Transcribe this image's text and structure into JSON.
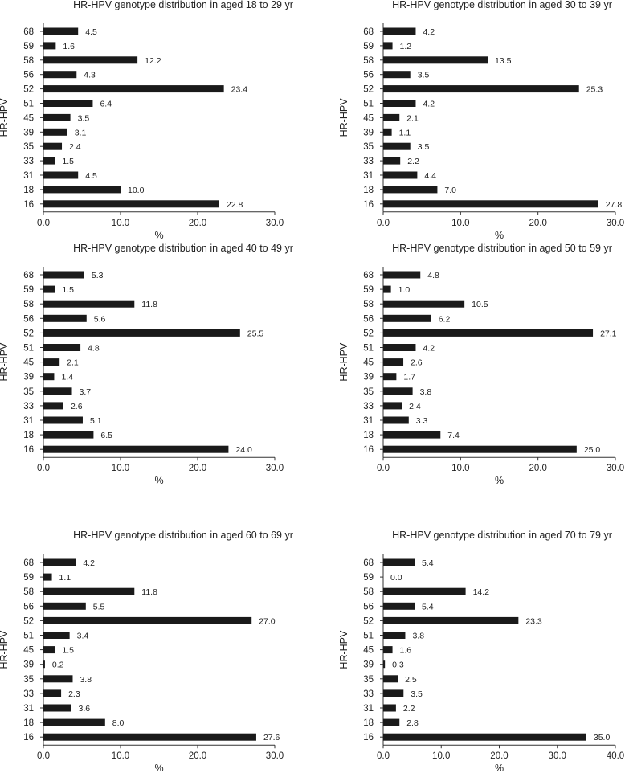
{
  "chart_data": [
    {
      "type": "bar",
      "orientation": "horizontal",
      "title": "HR-HPV genotype distribution in aged 18 to 29 yr",
      "ylabel": "HR-HPV",
      "xlabel": "%",
      "categories": [
        "68",
        "59",
        "58",
        "56",
        "52",
        "51",
        "45",
        "39",
        "35",
        "33",
        "31",
        "18",
        "16"
      ],
      "values": [
        4.5,
        1.6,
        12.2,
        4.3,
        23.4,
        6.4,
        3.5,
        3.1,
        2.4,
        1.5,
        4.5,
        10.0,
        22.8
      ],
      "labels": [
        "4.5",
        "1.6",
        "12.2",
        "4.3",
        "23.4",
        "6.4",
        "3.5",
        "3.1",
        "2.4",
        "1.5",
        "4.5",
        "10.0",
        "22.8"
      ],
      "xlim": [
        0,
        30
      ],
      "xticks": [
        "0.0",
        "10.0",
        "20.0",
        "30.0"
      ],
      "grid": false,
      "bar_color": "#1a1a1a"
    },
    {
      "type": "bar",
      "orientation": "horizontal",
      "title": "HR-HPV genotype distribution in aged 30 to 39 yr",
      "ylabel": "HR-HPV",
      "xlabel": "%",
      "categories": [
        "68",
        "59",
        "58",
        "56",
        "52",
        "51",
        "45",
        "39",
        "35",
        "33",
        "31",
        "18",
        "16"
      ],
      "values": [
        4.2,
        1.2,
        13.5,
        3.5,
        25.3,
        4.2,
        2.1,
        1.1,
        3.5,
        2.2,
        4.4,
        7.0,
        27.8
      ],
      "labels": [
        "4.2",
        "1.2",
        "13.5",
        "3.5",
        "25.3",
        "4.2",
        "2.1",
        "1.1",
        "3.5",
        "2.2",
        "4.4",
        "7.0",
        "27.8"
      ],
      "xlim": [
        0,
        30
      ],
      "xticks": [
        "0.0",
        "10.0",
        "20.0",
        "30.0"
      ],
      "grid": false,
      "bar_color": "#1a1a1a"
    },
    {
      "type": "bar",
      "orientation": "horizontal",
      "title": "HR-HPV genotype distribution in aged 40 to 49 yr",
      "ylabel": "HR-HPV",
      "xlabel": "%",
      "categories": [
        "68",
        "59",
        "58",
        "56",
        "52",
        "51",
        "45",
        "39",
        "35",
        "33",
        "31",
        "18",
        "16"
      ],
      "values": [
        5.3,
        1.5,
        11.8,
        5.6,
        25.5,
        4.8,
        2.1,
        1.4,
        3.7,
        2.6,
        5.1,
        6.5,
        24.0
      ],
      "labels": [
        "5.3",
        "1.5",
        "11.8",
        "5.6",
        "25.5",
        "4.8",
        "2.1",
        "1.4",
        "3.7",
        "2.6",
        "5.1",
        "6.5",
        "24.0"
      ],
      "xlim": [
        0,
        30
      ],
      "xticks": [
        "0.0",
        "10.0",
        "20.0",
        "30.0"
      ],
      "grid": false,
      "bar_color": "#1a1a1a"
    },
    {
      "type": "bar",
      "orientation": "horizontal",
      "title": "HR-HPV genotype distribution in aged 50 to 59 yr",
      "ylabel": "HR-HPV",
      "xlabel": "%",
      "categories": [
        "68",
        "59",
        "58",
        "56",
        "52",
        "51",
        "45",
        "39",
        "35",
        "33",
        "31",
        "18",
        "16"
      ],
      "values": [
        4.8,
        1.0,
        10.5,
        6.2,
        27.1,
        4.2,
        2.6,
        1.7,
        3.8,
        2.4,
        3.3,
        7.4,
        25.0
      ],
      "labels": [
        "4.8",
        "1.0",
        "10.5",
        "6.2",
        "27.1",
        "4.2",
        "2.6",
        "1.7",
        "3.8",
        "2.4",
        "3.3",
        "7.4",
        "25.0"
      ],
      "xlim": [
        0,
        30
      ],
      "xticks": [
        "0.0",
        "10.0",
        "20.0",
        "30.0"
      ],
      "grid": false,
      "bar_color": "#1a1a1a"
    },
    {
      "type": "bar",
      "orientation": "horizontal",
      "title": "HR-HPV genotype distribution in aged 60 to 69 yr",
      "ylabel": "HR-HPV",
      "xlabel": "%",
      "categories": [
        "68",
        "59",
        "58",
        "56",
        "52",
        "51",
        "45",
        "39",
        "35",
        "33",
        "31",
        "18",
        "16"
      ],
      "values": [
        4.2,
        1.1,
        11.8,
        5.5,
        27.0,
        3.4,
        1.5,
        0.2,
        3.8,
        2.3,
        3.6,
        8.0,
        27.6
      ],
      "labels": [
        "4.2",
        "1.1",
        "11.8",
        "5.5",
        "27.0",
        "3.4",
        "1.5",
        "0.2",
        "3.8",
        "2.3",
        "3.6",
        "8.0",
        "27.6"
      ],
      "xlim": [
        0,
        30
      ],
      "xticks": [
        "0.0",
        "10.0",
        "20.0",
        "30.0"
      ],
      "grid": false,
      "bar_color": "#1a1a1a"
    },
    {
      "type": "bar",
      "orientation": "horizontal",
      "title": "HR-HPV genotype distribution in aged 70 to 79 yr",
      "ylabel": "HR-HPV",
      "xlabel": "%",
      "categories": [
        "68",
        "59",
        "58",
        "56",
        "52",
        "51",
        "45",
        "39",
        "35",
        "33",
        "31",
        "18",
        "16"
      ],
      "values": [
        5.4,
        0.0,
        14.2,
        5.4,
        23.3,
        3.8,
        1.6,
        0.3,
        2.5,
        3.5,
        2.2,
        2.8,
        35.0
      ],
      "labels": [
        "5.4",
        "0.0",
        "14.2",
        "5.4",
        "23.3",
        "3.8",
        "1.6",
        "0.3",
        "2.5",
        "3.5",
        "2.2",
        "2.8",
        "35.0"
      ],
      "xlim": [
        0,
        40
      ],
      "xticks": [
        "0.0",
        "10.0",
        "20.0",
        "30.0",
        "40.0"
      ],
      "grid": false,
      "bar_color": "#1a1a1a"
    }
  ]
}
